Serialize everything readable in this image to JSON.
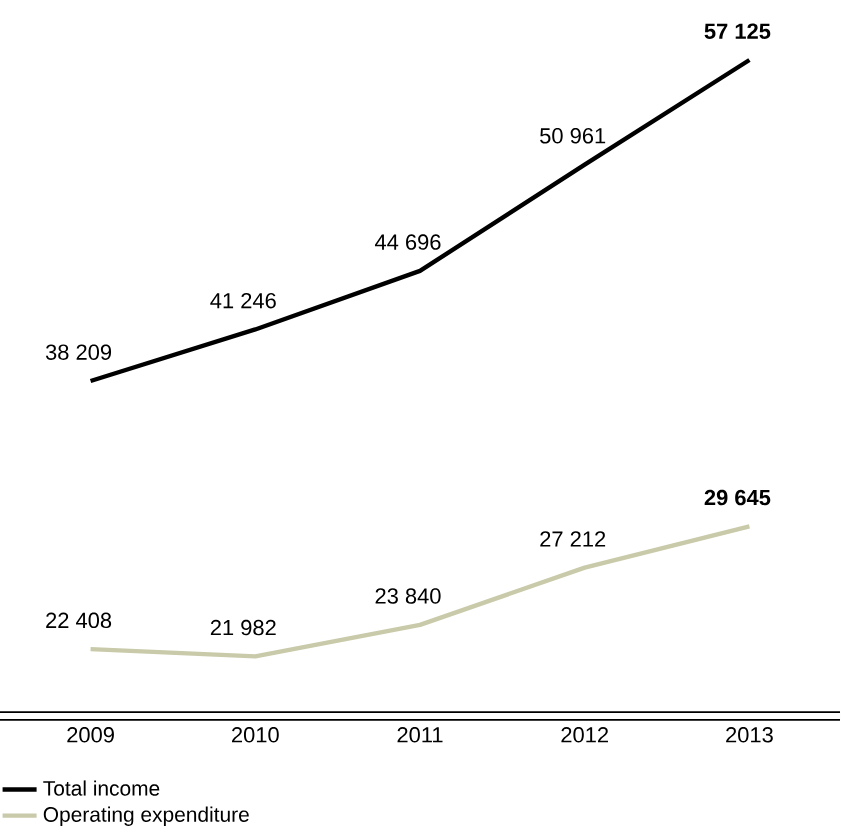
{
  "chart_data": {
    "type": "line",
    "categories": [
      "2009",
      "2010",
      "2011",
      "2012",
      "2013"
    ],
    "series": [
      {
        "name": "Total income",
        "color": "#000000",
        "values": [
          38209,
          41246,
          44696,
          50961,
          57125
        ],
        "value_labels": [
          "38 209",
          "41 246",
          "44 696",
          "50 961",
          "57 125"
        ]
      },
      {
        "name": "Operating expenditure",
        "color": "#c9caa9",
        "values": [
          22408,
          21982,
          23840,
          27212,
          29645
        ],
        "value_labels": [
          "22 408",
          "21 982",
          "23 840",
          "27 212",
          "29 645"
        ]
      }
    ],
    "legend": "bottom",
    "grid": false,
    "marker": "none",
    "line_style": "solid"
  }
}
